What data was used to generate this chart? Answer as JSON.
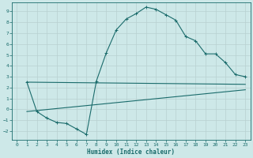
{
  "xlabel": "Humidex (Indice chaleur)",
  "bg_color": "#cde8e8",
  "grid_color": "#b8d0d0",
  "line_color": "#1a6b6b",
  "spine_color": "#1a6b6b",
  "tick_color": "#1a6b6b",
  "label_color": "#1a6b6b",
  "xlim": [
    -0.5,
    23.5
  ],
  "ylim": [
    -2.8,
    9.8
  ],
  "xticks": [
    0,
    1,
    2,
    3,
    4,
    5,
    6,
    7,
    8,
    9,
    10,
    11,
    12,
    13,
    14,
    15,
    16,
    17,
    18,
    19,
    20,
    21,
    22,
    23
  ],
  "yticks": [
    -2,
    -1,
    0,
    1,
    2,
    3,
    4,
    5,
    6,
    7,
    8,
    9
  ],
  "curve1_x": [
    1,
    2,
    3,
    4,
    5,
    6,
    7,
    8,
    9,
    10,
    11,
    12,
    13,
    14,
    15,
    16,
    17,
    18,
    19,
    20,
    21,
    22,
    23
  ],
  "curve1_y": [
    2.5,
    -0.2,
    -0.8,
    -1.2,
    -1.3,
    -1.8,
    -2.3,
    2.6,
    5.2,
    7.3,
    8.3,
    8.8,
    9.4,
    9.2,
    8.7,
    8.2,
    6.7,
    6.3,
    5.1,
    5.1,
    4.3,
    3.2,
    3.0
  ],
  "curve2_x": [
    1,
    23
  ],
  "curve2_y": [
    2.5,
    2.3
  ],
  "curve3_x": [
    1,
    23
  ],
  "curve3_y": [
    -0.2,
    1.8
  ]
}
